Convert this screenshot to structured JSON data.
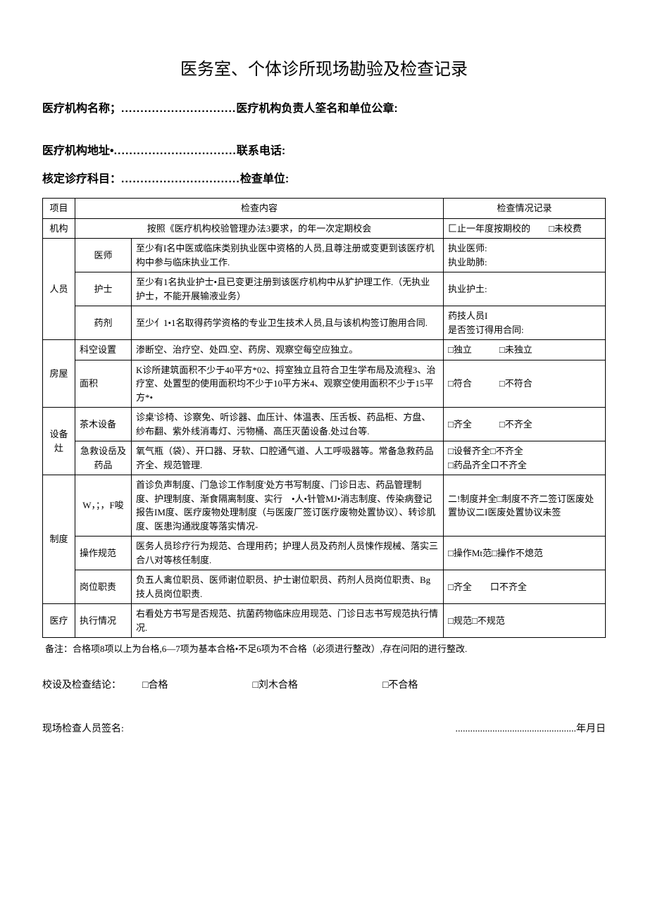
{
  "doc": {
    "title": "医务室、个体诊所现场勘验及检查记录",
    "header1_label": "医疗机构名称；",
    "header1_dots": "..............................",
    "header1_suffix": "医疗机构负责人筌名和单位公章:",
    "header2_label": "医疗机构地址•",
    "header2_dots": "................................",
    "header2_suffix": "联系电话:",
    "header3_label": "核定诊疗科目：",
    "header3_dots": "...............................",
    "header3_suffix": "检查单位:",
    "table": {
      "head": {
        "c1": "项目",
        "c2": "检查内容",
        "c3": "检查情况记录"
      },
      "row_org": {
        "cat": "机构",
        "content": "按照《医疗机构校验管理办法3要求，的年一次定期校会",
        "record": "匚止一年度按期校的　　□未校费"
      },
      "row_personnel_cat": "人员",
      "row_doctor": {
        "sub": "医师",
        "content": "至少有I名中医或临床类别执业医中资格的人员,且尊注册或变更到该医疗机构中参与临床执业工作.",
        "record": "执业医师:\n执业助肺:"
      },
      "row_nurse": {
        "sub": "护士",
        "content": "至少有1名执业护士•且已变更注册到该医疗机构中从犷护理工作.（无执业护士，不能开展输液业务）",
        "record": "执业护土:"
      },
      "row_pharma": {
        "sub": "药剂",
        "content": "至少亻1•1名取得药学资格的专业卫生技术人员,且与该机构签订胞用合同.",
        "record": "药技人员I\n是否签订得用合同:"
      },
      "row_house_cat": "房屋",
      "row_room": {
        "sub": "科空设置",
        "content": "渗断空、治疗空、处四.空、药房、观察空每空应独立。",
        "record": "□独立　　　□未独立"
      },
      "row_area": {
        "sub": "面积",
        "content": "K诊所建筑面积不少于40平方*02、捋室独立且符合卫生学布局及流程3、治疗室、处置型的使用面积均不少于10平方米4、观察空使用面积不少于15平方*•",
        "record": "□符合　　　□不符合"
      },
      "row_equip_cat": "设备灶",
      "row_furniture": {
        "sub": "茶木设备",
        "content": "诊桌'诊椅、诊察免、听诊器、血压计、体温表、压舌板、药品柜、方盘、纱布翻、紫外线消毒灯、污物桶、高压灭菌设备.处过台等.",
        "record": "□齐全　　　□不齐全"
      },
      "row_rescue": {
        "sub": "急救设岳及药品",
        "content": "氧气瓶（袋）、开口器、牙软、口腔通气道、人工呼吸器等。常备急救药品齐全、规范管理.",
        "record": "□设餐齐全□不齐全\n□药品齐全口不齐全"
      },
      "row_system_cat": "制度",
      "row_job": {
        "sub": "W，；，F唆",
        "content": "首诊负声制度、门急诊工作制度'处方书写制度、门诊日志、药品管理制度、护理制度、渐食隔离制度、实行　•人•针管MJ•消志制度、传染病登记报告IM度、医疗废物处理制度（与医废厂签订医疗废物处置协议）、转诊肌度、医患沟通戕度等落实情况-",
        "record": "二!制度并全□制度不齐二签订医废处置协议二I医废处置协议未签"
      },
      "row_op": {
        "sub": "操作规范",
        "content": "医务人员珍疗行为规范、合理用药；护理人员及药剂人员悚作规械、落实三合八对等核任制度.",
        "record": "□操作Mt范□操作不熄范"
      },
      "row_post": {
        "sub": "岗位职责",
        "content": "负五人禽位职员、医师谢位职员、护士谢位职员、药剂人员岗位职责、Bg技人员岗位职责.",
        "record": "□齐全　　口不齐全"
      },
      "row_med_cat": "医疗",
      "row_exec": {
        "sub": "执行情况",
        "content": "右看处方书写是否规范、抗菌药物临床应用现范、门诊日志书写规范执行情况.",
        "record": "□规范□不规范"
      }
    },
    "footnote": "备注：合格项8项以上为台格,6—7项为基本合格•不足6项为不合格（必须进行整改）,存在问阳的进行整改.",
    "conclusion": {
      "label": "校设及检查结论：",
      "opt1": "□合格",
      "opt2": "□刘木合格",
      "opt3": "□不合格"
    },
    "signature": {
      "label": "现场检查人员签名:",
      "date_dots": ".................................................",
      "date_suffix": "年月日"
    }
  }
}
